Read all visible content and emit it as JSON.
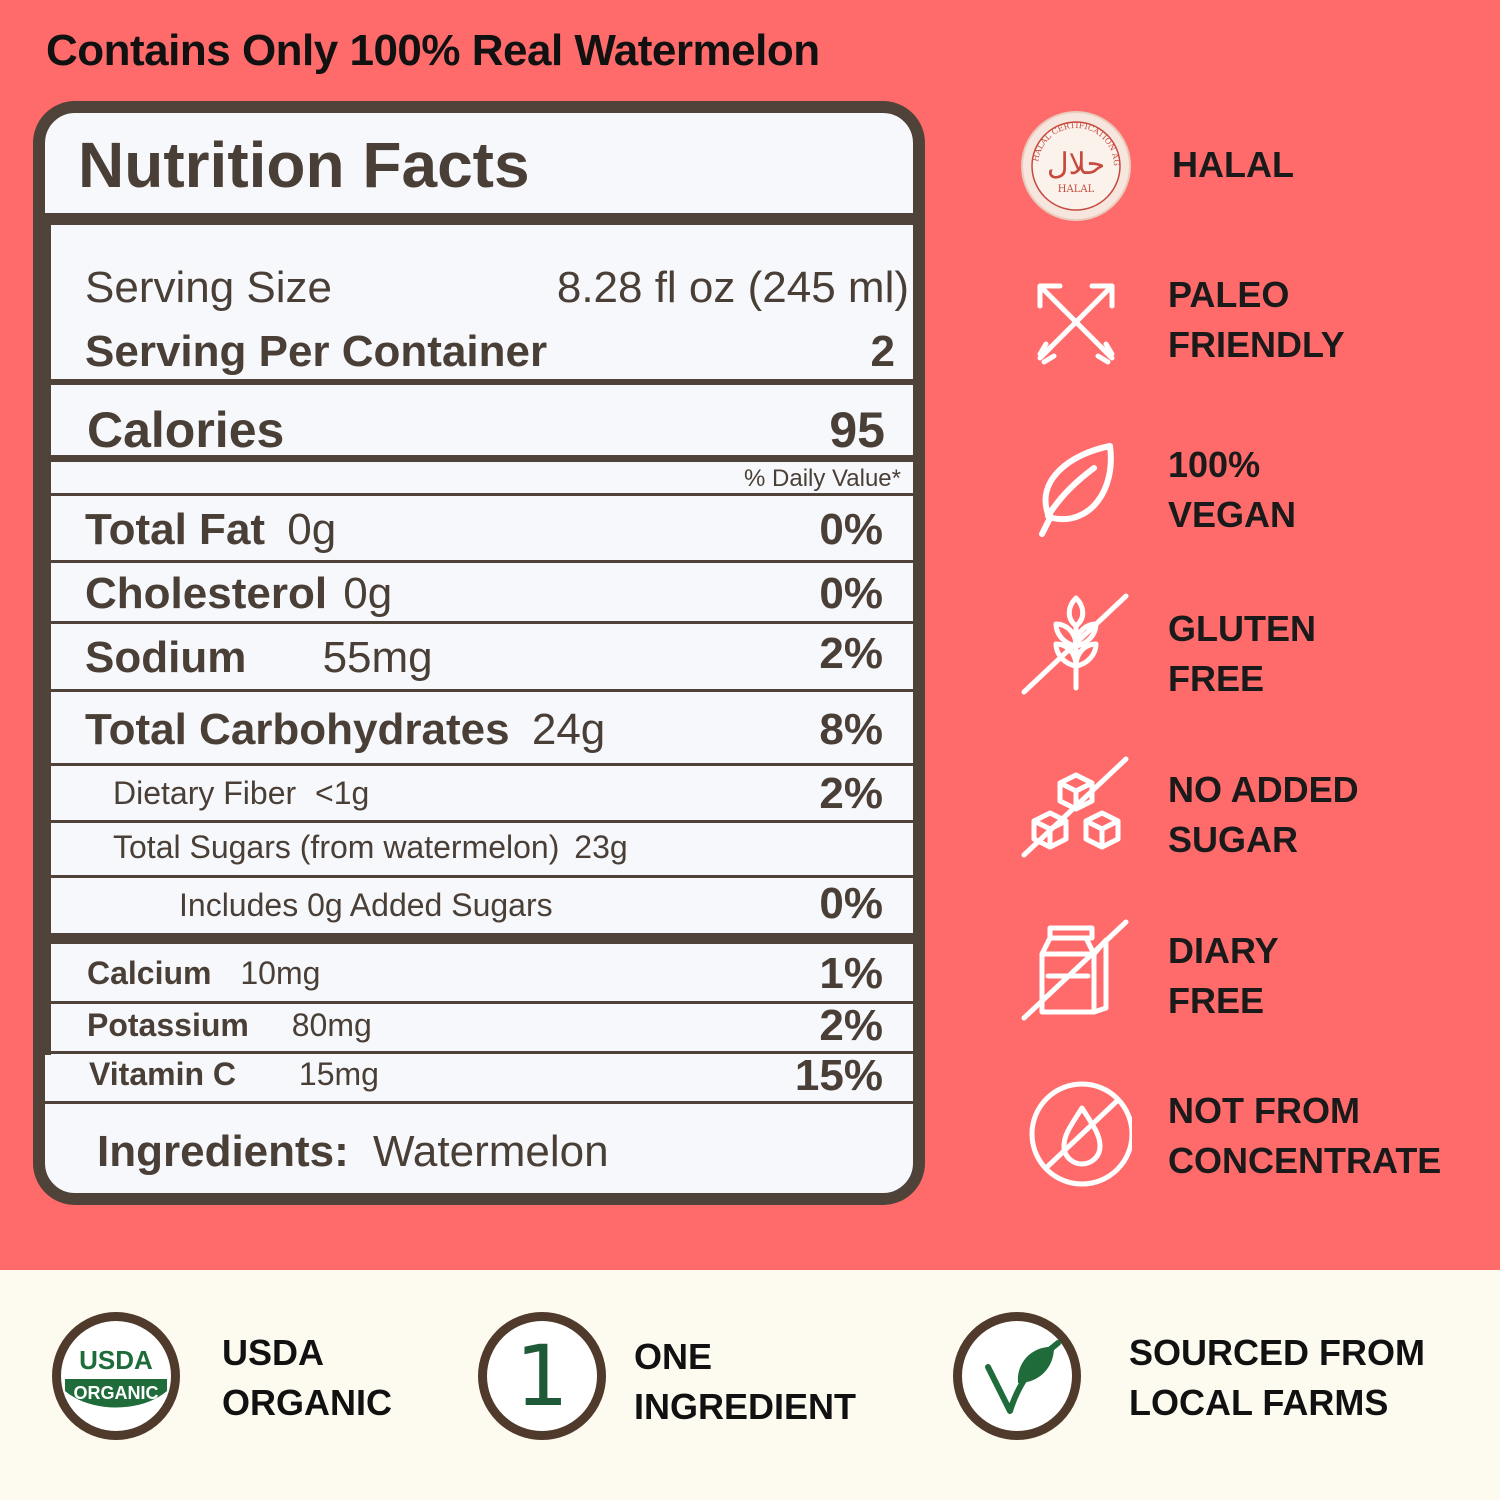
{
  "headline": "Contains Only 100% Real Watermelon",
  "nutrition": {
    "title": "Nutrition Facts",
    "serving_size_label": "Serving Size",
    "serving_size_value": "8.28 fl oz (245 ml)",
    "servings_label": "Serving Per Container",
    "servings_value": "2",
    "calories_label": "Calories",
    "calories_value": "95",
    "daily_value_header": "% Daily Value*",
    "rows": {
      "total_fat": {
        "label": "Total Fat",
        "amount": "0g",
        "dv": "0%"
      },
      "cholesterol": {
        "label": "Cholesterol",
        "amount": "0g",
        "dv": "0%"
      },
      "sodium": {
        "label": "Sodium",
        "amount": "55mg",
        "dv": "2%"
      },
      "total_carbs": {
        "label": "Total Carbohydrates",
        "amount": "24g",
        "dv": "8%"
      },
      "dietary_fiber": {
        "label": "Dietary Fiber",
        "amount": "<1g",
        "dv": "2%"
      },
      "total_sugars": {
        "label": "Total Sugars (from watermelon)",
        "amount": "23g"
      },
      "added_sugars": {
        "label": "Includes 0g Added Sugars",
        "dv": "0%"
      },
      "calcium": {
        "label": "Calcium",
        "amount": "10mg",
        "dv": "1%"
      },
      "potassium": {
        "label": "Potassium",
        "amount": "80mg",
        "dv": "2%"
      },
      "vitamin_c": {
        "label": "Vitamin C",
        "amount": "15mg",
        "dv": "15%"
      }
    },
    "ingredients_label": "Ingredients:",
    "ingredients_value": "Watermelon"
  },
  "badges": [
    {
      "icon": "halal-seal-icon",
      "line1": "HALAL",
      "line2": "",
      "seal_top": "HALAL CERTIFICATION AGENCY",
      "seal_word": "HALAL"
    },
    {
      "icon": "crossed-arrows-icon",
      "line1": "PALEO",
      "line2": "FRIENDLY"
    },
    {
      "icon": "leaf-icon",
      "line1": "100%",
      "line2": "VEGAN"
    },
    {
      "icon": "wheat-crossed-icon",
      "line1": "GLUTEN",
      "line2": "FREE"
    },
    {
      "icon": "sugar-cubes-crossed-icon",
      "line1": "NO ADDED",
      "line2": "SUGAR"
    },
    {
      "icon": "milk-carton-crossed-icon",
      "line1": "DIARY",
      "line2": "FREE"
    },
    {
      "icon": "drop-crossed-icon",
      "line1": "NOT FROM",
      "line2": "CONCENTRATE"
    }
  ],
  "bottom": [
    {
      "icon": "usda-organic-icon",
      "seal_top": "USDA",
      "seal_bottom": "ORGANIC",
      "line1": "USDA",
      "line2": "ORGANIC"
    },
    {
      "icon": "number-one-icon",
      "seal_text": "1",
      "line1": "ONE",
      "line2": "INGREDIENT"
    },
    {
      "icon": "checkmark-leaf-icon",
      "line1": "SOURCED FROM",
      "line2": "LOCAL FARMS"
    }
  ],
  "colors": {
    "background_top": "#ff6b6b",
    "background_bottom": "#fdfbef",
    "panel_border": "#4f4238",
    "panel_fill": "#f6f8fc",
    "text_dark": "#4a3f36",
    "seal_green": "#1f6b3a"
  }
}
